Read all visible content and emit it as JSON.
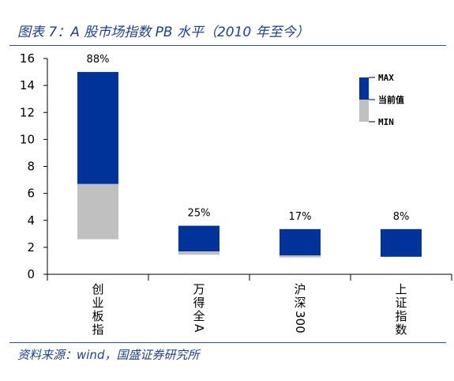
{
  "figure": {
    "title": "图表 7：A 股市场指数 PB 水平（2010 年至今）",
    "source": "资料来源：wind，国盛证券研究所"
  },
  "chart_data": {
    "type": "bar",
    "subtype": "floating-range",
    "categories": [
      "创业板指",
      "万得全A",
      "沪深300",
      "上证指数"
    ],
    "series": [
      {
        "name": "MAX",
        "values": [
          15.0,
          3.6,
          3.35,
          3.35
        ]
      },
      {
        "name": "当前值",
        "values": [
          6.7,
          1.7,
          1.4,
          1.3
        ]
      },
      {
        "name": "MIN",
        "values": [
          2.6,
          1.45,
          1.25,
          1.3
        ]
      }
    ],
    "percentile_labels": [
      "88%",
      "25%",
      "17%",
      "8%"
    ],
    "ylim": [
      0,
      16
    ],
    "yticks": [
      0,
      2,
      4,
      6,
      8,
      10,
      12,
      14,
      16
    ],
    "xlabel": "",
    "ylabel": "",
    "grid": false,
    "legend": {
      "position": "top-right",
      "labels": [
        "MAX",
        "当前值",
        "MIN"
      ]
    },
    "colors": {
      "upper": "#003399",
      "lower": "#c0c0c0"
    }
  }
}
